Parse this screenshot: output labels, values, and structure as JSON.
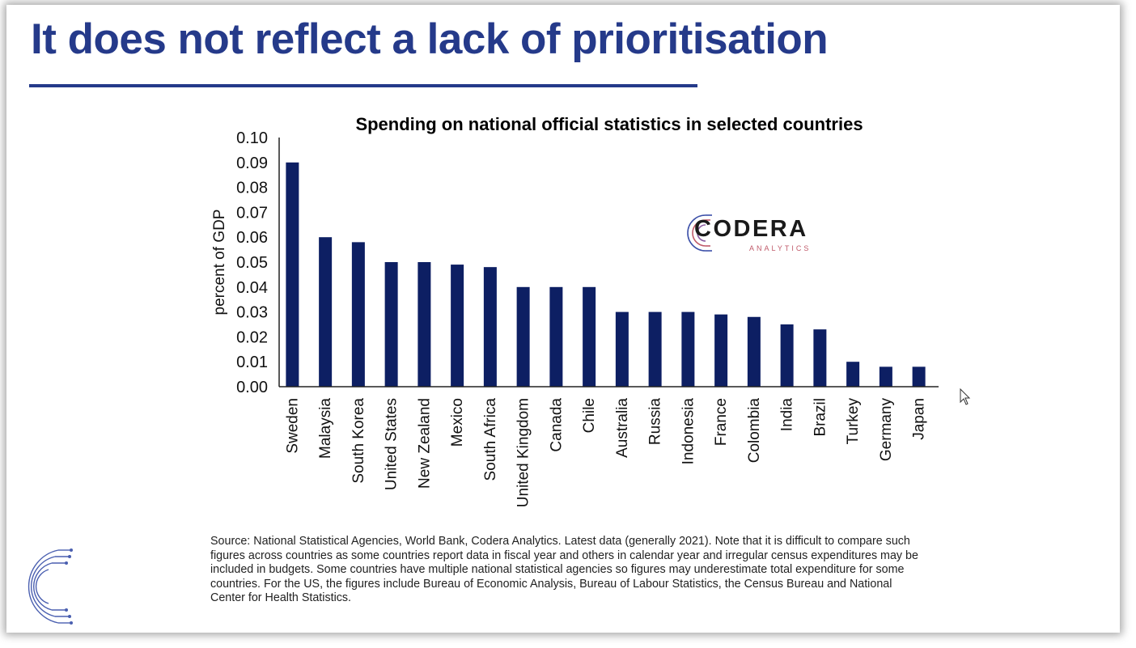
{
  "slide": {
    "title": "It does not reflect a lack of prioritisation",
    "source_note": "Source: National Statistical Agencies, World Bank, Codera Analytics. Latest data (generally 2021). Note that it is difficult to compare such figures across countries as some countries report data in fiscal year and others in calendar year and irregular census expenditures may be included in budgets. Some countries have multiple national statistical agencies so figures may underestimate total expenditure for some countries. For the US, the figures include Bureau of Economic Analysis, Bureau of Labour Statistics, the Census Bureau and National Center for Health Statistics."
  },
  "logo": {
    "wordmark": "CODERA",
    "subtitle": "ANALYTICS"
  },
  "colors": {
    "title": "#253a8a",
    "bar": "#0d1f63",
    "axis": "#222222"
  },
  "chart_data": {
    "type": "bar",
    "title": "Spending on national official statistics in selected countries",
    "xlabel": "",
    "ylabel": "percent of GDP",
    "ylim": [
      0,
      0.1
    ],
    "yticks": [
      "0.00",
      "0.01",
      "0.02",
      "0.03",
      "0.04",
      "0.05",
      "0.06",
      "0.07",
      "0.08",
      "0.09",
      "0.10"
    ],
    "grid": false,
    "categories": [
      "Sweden",
      "Malaysia",
      "South Korea",
      "United States",
      "New Zealand",
      "Mexico",
      "South Africa",
      "United Kingdom",
      "Canada",
      "Chile",
      "Australia",
      "Russia",
      "Indonesia",
      "France",
      "Colombia",
      "India",
      "Brazil",
      "Turkey",
      "Germany",
      "Japan"
    ],
    "values": [
      0.09,
      0.06,
      0.058,
      0.05,
      0.05,
      0.049,
      0.048,
      0.04,
      0.04,
      0.04,
      0.03,
      0.03,
      0.03,
      0.029,
      0.028,
      0.025,
      0.023,
      0.01,
      0.008,
      0.008
    ]
  }
}
